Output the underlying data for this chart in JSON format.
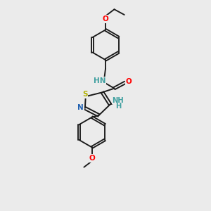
{
  "background_color": "#ebebeb",
  "bond_color": "#1a1a1a",
  "atom_colors": {
    "N": "#2060b0",
    "O": "#ff0000",
    "S": "#b0b000",
    "NH": "#40a0a0",
    "NH2": "#40a0a0",
    "C": "#1a1a1a"
  },
  "figsize": [
    3.0,
    3.0
  ],
  "dpi": 100
}
